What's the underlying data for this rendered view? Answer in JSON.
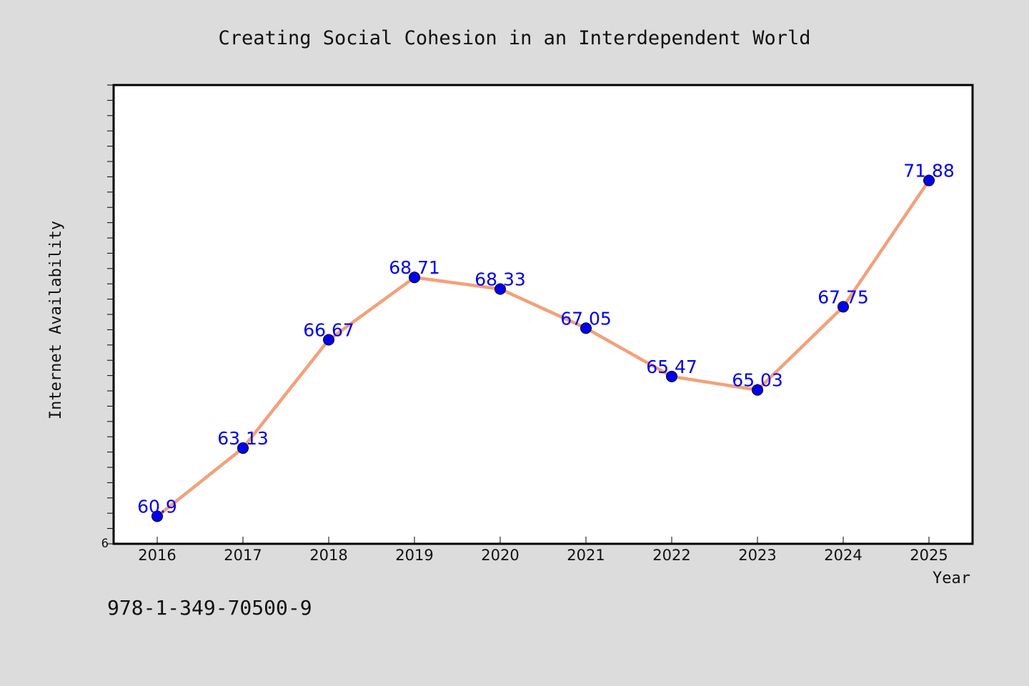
{
  "chart_data": {
    "type": "line",
    "title": "Creating Social Cohesion in an Interdependent World",
    "xlabel": "Year",
    "ylabel": "Internet Availability",
    "categories": [
      "2016",
      "2017",
      "2018",
      "2019",
      "2020",
      "2021",
      "2022",
      "2023",
      "2024",
      "2025"
    ],
    "series": [
      {
        "values": [
          60.9,
          63.13,
          66.67,
          68.71,
          68.33,
          67.05,
          65.47,
          65.03,
          67.75,
          71.88
        ],
        "data_labels": [
          "60.9",
          "63.13",
          "66.67",
          "68.71",
          "68.33",
          "67.05",
          "65.47",
          "65.03",
          "67.75",
          "71.88"
        ]
      }
    ],
    "ylim": [
      60,
      75
    ],
    "y_tick_labels": [
      "6"
    ],
    "grid": false,
    "legend": "none",
    "colors": {
      "line": "#f4a07a",
      "marker": "#0000ee",
      "data_label": "#0000ee",
      "plot_background": "#ffffff",
      "figure_background": "#dcdcdc"
    }
  },
  "footer": {
    "isbn": "978-1-349-70500-9"
  }
}
